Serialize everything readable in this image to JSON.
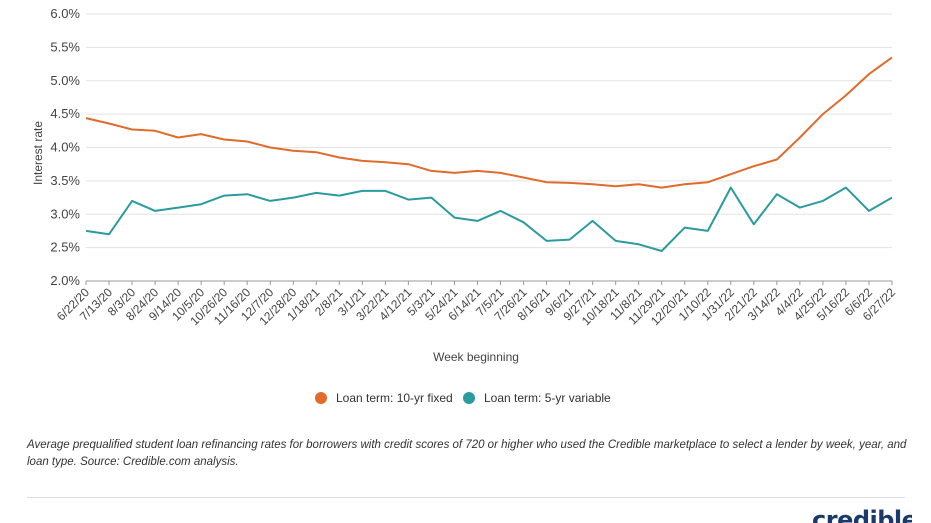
{
  "chart_data": {
    "type": "line",
    "title": "",
    "xlabel": "Week beginning",
    "ylabel": "Interest rate",
    "ylim": [
      2.0,
      6.0
    ],
    "y_ticks": [
      "6.0%",
      "5.5%",
      "5.0%",
      "4.5%",
      "4.0%",
      "3.5%",
      "3.0%",
      "2.5%",
      "2.0%"
    ],
    "grid": "horizontal",
    "legend_position": "bottom",
    "x_tick_labels": [
      "6/22/20",
      "7/13/20",
      "8/3/20",
      "8/24/20",
      "9/14/20",
      "10/5/20",
      "10/26/20",
      "11/16/20",
      "12/7/20",
      "12/28/20",
      "1/18/21",
      "2/8/21",
      "3/1/21",
      "3/22/21",
      "4/12/21",
      "5/3/21",
      "5/24/21",
      "6/14/21",
      "7/5/21",
      "7/26/21",
      "8/16/21",
      "9/6/21",
      "9/27/21",
      "10/18/21",
      "11/8/21",
      "11/29/21",
      "12/20/21",
      "1/10/22",
      "1/31/22",
      "2/21/22",
      "3/14/22",
      "4/4/22",
      "4/25/22",
      "5/16/22",
      "6/6/22",
      "6/27/22"
    ],
    "series": [
      {
        "name": "Loan term: 10-yr fixed",
        "color": "#e06b2b",
        "values": [
          4.44,
          4.36,
          4.27,
          4.25,
          4.15,
          4.2,
          4.12,
          4.09,
          4.0,
          3.95,
          3.93,
          3.85,
          3.8,
          3.78,
          3.75,
          3.65,
          3.62,
          3.65,
          3.62,
          3.55,
          3.48,
          3.47,
          3.45,
          3.42,
          3.45,
          3.4,
          3.45,
          3.48,
          3.6,
          3.72,
          3.82,
          4.15,
          4.5,
          4.78,
          5.1,
          5.35
        ]
      },
      {
        "name": "Loan term: 5-yr variable",
        "color": "#2a9b9f",
        "values": [
          2.75,
          2.7,
          3.2,
          3.05,
          3.1,
          3.15,
          3.28,
          3.3,
          3.2,
          3.25,
          3.32,
          3.28,
          3.35,
          3.35,
          3.22,
          3.25,
          2.95,
          2.9,
          3.05,
          2.88,
          2.6,
          2.62,
          2.9,
          2.6,
          2.55,
          2.45,
          2.8,
          2.75,
          3.4,
          2.85,
          3.3,
          3.1,
          3.2,
          3.4,
          3.05,
          3.25
        ]
      }
    ]
  },
  "caption": "Average prequalified student loan refinancing rates for borrowers with credit scores of 720 or higher who used the Credible marketplace to select a lender by week, year, and loan type. Source: Credible.com analysis.",
  "brand": "credible"
}
